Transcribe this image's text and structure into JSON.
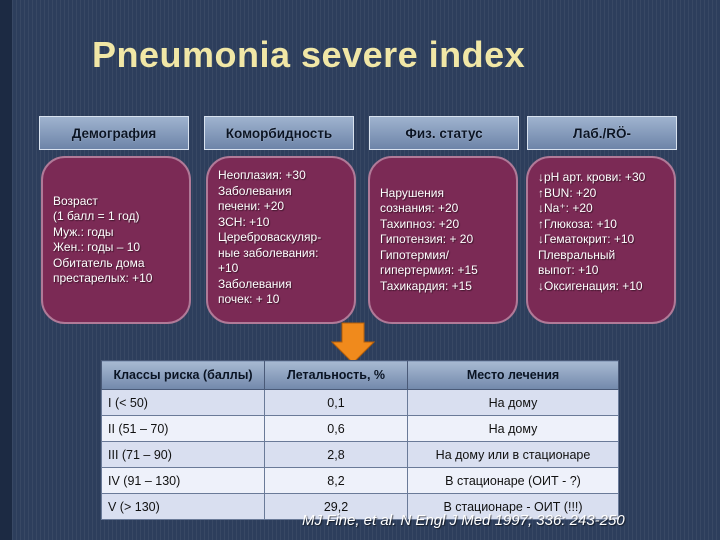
{
  "title": "Pneumonia severe index",
  "categories": [
    {
      "label": "Демография",
      "items": [
        "Возраст",
        "(1 балл = 1 год)",
        "Муж.: годы",
        "Жен.: годы – 10",
        "Обитатель дома",
        "престарелых: +10"
      ]
    },
    {
      "label": "Коморбидность",
      "items": [
        "Неоплазия: +30",
        "Заболевания",
        "печени: +20",
        "ЗСН: +10",
        "Цереброваскуляр-",
        "ные заболевания:",
        "+10",
        "Заболевания",
        "почек: + 10"
      ]
    },
    {
      "label": "Физ. статус",
      "items": [
        "Нарушения",
        "сознания: +20",
        "Тахипноэ: +20",
        "Гипотензия: + 20",
        "Гипотермия/",
        "гипертермия: +15",
        "Тахикардия: +15"
      ]
    },
    {
      "label": "Лаб./RÖ-",
      "items": [
        "↓рН арт. крови: +30",
        "↑BUN: +20",
        "↓Na⁺: +20",
        "↑Глюкоза: +10",
        "↓Гематокрит: +10",
        "Плевральный",
        "выпот: +10",
        "↓Оксигенация: +10"
      ]
    }
  ],
  "table": {
    "headers": [
      "Классы риска (баллы)",
      "Летальность, %",
      "Место лечения"
    ],
    "rows": [
      [
        "I (< 50)",
        "0,1",
        "На дому"
      ],
      [
        "II (51 – 70)",
        "0,6",
        "На дому"
      ],
      [
        "III (71 – 90)",
        "2,8",
        "На дому или в стационаре"
      ],
      [
        "IV (91 – 130)",
        "8,2",
        "В стационаре (ОИТ - ?)"
      ],
      [
        "V (> 130)",
        "29,2",
        "В стационаре - ОИТ (!!!)"
      ]
    ]
  },
  "citation": "MJ Fine, et al. N Engl J Med 1997; 336: 243-250",
  "colors": {
    "title": "#f1e7a6",
    "box": "#7b2a55",
    "arrow": "#f08a1c",
    "background": "#2d3e5c"
  }
}
